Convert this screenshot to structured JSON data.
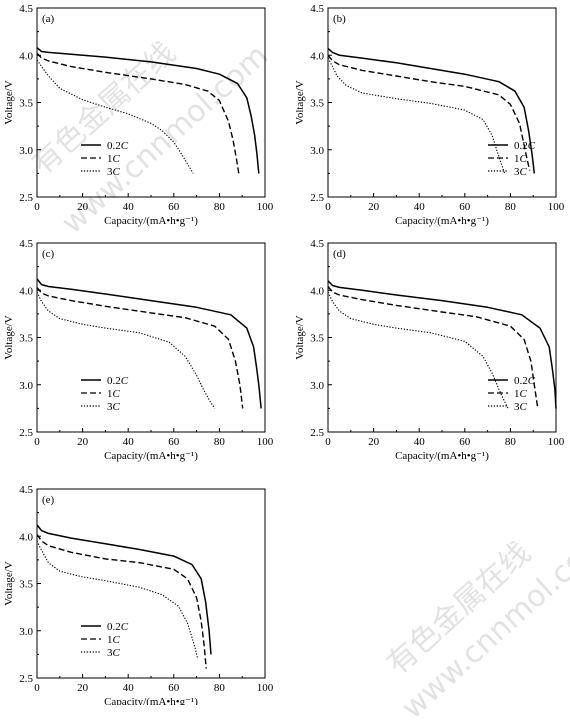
{
  "chart_data": [
    {
      "panel": "(a)",
      "type": "line",
      "xlabel": "Capacity/(mA•h•g⁻¹)",
      "ylabel": "Voltage/V",
      "xlim": [
        0,
        100
      ],
      "ylim": [
        2.5,
        4.5
      ],
      "xticks": [
        "0",
        "20",
        "40",
        "60",
        "80",
        "100"
      ],
      "yticks": [
        "2.5",
        "3.0",
        "3.5",
        "4.0",
        "4.5"
      ],
      "legend_position": "bottom-left",
      "series": [
        {
          "name": "0.2C",
          "style": "solid",
          "x": [
            0,
            2,
            5,
            15,
            30,
            50,
            70,
            80,
            88,
            92,
            94,
            95.5,
            96.5,
            97.3
          ],
          "y": [
            4.08,
            4.04,
            4.03,
            4.01,
            3.98,
            3.93,
            3.86,
            3.8,
            3.7,
            3.55,
            3.35,
            3.15,
            2.95,
            2.75
          ]
        },
        {
          "name": "1C",
          "style": "dashed",
          "x": [
            0,
            2,
            5,
            15,
            30,
            50,
            65,
            75,
            80,
            84,
            86,
            87.5,
            88.5
          ],
          "y": [
            4.02,
            3.97,
            3.94,
            3.88,
            3.82,
            3.75,
            3.69,
            3.62,
            3.52,
            3.3,
            3.1,
            2.9,
            2.75
          ]
        },
        {
          "name": "3C",
          "style": "dotted",
          "x": [
            0,
            2,
            5,
            10,
            20,
            30,
            40,
            50,
            55,
            60,
            63,
            66,
            68.5
          ],
          "y": [
            3.95,
            3.88,
            3.78,
            3.65,
            3.53,
            3.45,
            3.38,
            3.28,
            3.2,
            3.08,
            2.97,
            2.85,
            2.75
          ]
        }
      ]
    },
    {
      "panel": "(b)",
      "type": "line",
      "xlabel": "Capacity/(mA•h•g⁻¹)",
      "ylabel": "Voltage/V",
      "xlim": [
        0,
        100
      ],
      "ylim": [
        2.5,
        4.5
      ],
      "xticks": [
        "0",
        "20",
        "40",
        "60",
        "80",
        "100"
      ],
      "yticks": [
        "2.5",
        "3.0",
        "3.5",
        "4.0",
        "4.5"
      ],
      "legend_position": "bottom-right",
      "series": [
        {
          "name": "0.2C",
          "style": "solid",
          "x": [
            0,
            2,
            5,
            15,
            30,
            45,
            60,
            75,
            82,
            86,
            88,
            89.5,
            90.5
          ],
          "y": [
            4.07,
            4.03,
            4.0,
            3.97,
            3.92,
            3.86,
            3.8,
            3.72,
            3.62,
            3.45,
            3.2,
            2.95,
            2.75
          ]
        },
        {
          "name": "1C",
          "style": "dashed",
          "x": [
            0,
            2,
            5,
            15,
            30,
            45,
            60,
            75,
            80,
            84,
            86,
            87.5,
            88.5
          ],
          "y": [
            4.0,
            3.94,
            3.9,
            3.84,
            3.78,
            3.72,
            3.67,
            3.58,
            3.48,
            3.28,
            3.05,
            2.88,
            2.78
          ]
        },
        {
          "name": "3C",
          "style": "dotted",
          "x": [
            0,
            2,
            4,
            8,
            15,
            30,
            45,
            60,
            68,
            72,
            74,
            76,
            77.5
          ],
          "y": [
            3.97,
            3.88,
            3.78,
            3.68,
            3.6,
            3.54,
            3.49,
            3.42,
            3.32,
            3.15,
            3.0,
            2.85,
            2.75
          ]
        }
      ]
    },
    {
      "panel": "(c)",
      "type": "line",
      "xlabel": "Capacity/(mA•h•g⁻¹)",
      "ylabel": "Voltage/V",
      "xlim": [
        0,
        100
      ],
      "ylim": [
        2.5,
        4.5
      ],
      "xticks": [
        "0",
        "20",
        "40",
        "60",
        "80",
        "100"
      ],
      "yticks": [
        "2.5",
        "3.0",
        "3.5",
        "4.0",
        "4.5"
      ],
      "legend_position": "bottom-left",
      "series": [
        {
          "name": "0.2C",
          "style": "solid",
          "x": [
            0,
            2,
            5,
            15,
            30,
            50,
            70,
            85,
            92,
            95,
            96.5,
            97.5,
            98.3
          ],
          "y": [
            4.12,
            4.06,
            4.04,
            4.01,
            3.96,
            3.89,
            3.82,
            3.74,
            3.6,
            3.4,
            3.15,
            2.95,
            2.75
          ]
        },
        {
          "name": "1C",
          "style": "dashed",
          "x": [
            0,
            2,
            5,
            15,
            30,
            50,
            65,
            78,
            84,
            87,
            89,
            90.2
          ],
          "y": [
            4.03,
            3.97,
            3.94,
            3.89,
            3.83,
            3.76,
            3.71,
            3.62,
            3.48,
            3.25,
            3.0,
            2.75
          ]
        },
        {
          "name": "3C",
          "style": "dotted",
          "x": [
            0,
            2,
            5,
            10,
            20,
            30,
            45,
            58,
            65,
            70,
            73,
            76,
            78
          ],
          "y": [
            3.98,
            3.88,
            3.78,
            3.7,
            3.64,
            3.6,
            3.55,
            3.45,
            3.3,
            3.1,
            2.95,
            2.82,
            2.75
          ]
        }
      ]
    },
    {
      "panel": "(d)",
      "type": "line",
      "xlabel": "Capacity/(mA•h•g⁻¹)",
      "ylabel": "Voltage/V",
      "xlim": [
        0,
        100
      ],
      "ylim": [
        2.5,
        4.5
      ],
      "xticks": [
        "0",
        "20",
        "40",
        "60",
        "80",
        "100"
      ],
      "yticks": [
        "2.5",
        "3.0",
        "3.5",
        "4.0",
        "4.5"
      ],
      "legend_position": "bottom-right",
      "series": [
        {
          "name": "0.2C",
          "style": "solid",
          "x": [
            0,
            2,
            5,
            15,
            30,
            50,
            70,
            85,
            93,
            97,
            98.5,
            99.5,
            100
          ],
          "y": [
            4.1,
            4.05,
            4.03,
            4.0,
            3.95,
            3.89,
            3.82,
            3.74,
            3.6,
            3.4,
            3.15,
            2.95,
            2.75
          ]
        },
        {
          "name": "1C",
          "style": "dashed",
          "x": [
            0,
            2,
            5,
            15,
            30,
            50,
            65,
            80,
            86,
            89,
            90.5,
            92
          ],
          "y": [
            4.04,
            3.98,
            3.95,
            3.9,
            3.84,
            3.77,
            3.72,
            3.62,
            3.48,
            3.25,
            3.0,
            2.75
          ]
        },
        {
          "name": "3C",
          "style": "dotted",
          "x": [
            0,
            2,
            5,
            10,
            20,
            30,
            45,
            60,
            68,
            72,
            75,
            77.5,
            79
          ],
          "y": [
            3.98,
            3.88,
            3.78,
            3.7,
            3.64,
            3.6,
            3.55,
            3.46,
            3.3,
            3.12,
            2.95,
            2.82,
            2.75
          ]
        }
      ]
    },
    {
      "panel": "(e)",
      "type": "line",
      "xlabel": "Capacity/(mA•h•g⁻¹)",
      "ylabel": "Voltage/V",
      "xlim": [
        0,
        100
      ],
      "ylim": [
        2.5,
        4.5
      ],
      "xticks": [
        "0",
        "20",
        "40",
        "60",
        "80",
        "100"
      ],
      "yticks": [
        "2.5",
        "3.0",
        "3.5",
        "4.0",
        "4.5"
      ],
      "legend_position": "bottom-left",
      "series": [
        {
          "name": "0.2C",
          "style": "solid",
          "x": [
            0,
            2,
            5,
            15,
            30,
            45,
            60,
            68,
            72,
            74,
            75.5,
            76.3
          ],
          "y": [
            4.12,
            4.06,
            4.03,
            3.98,
            3.92,
            3.86,
            3.79,
            3.7,
            3.55,
            3.3,
            3.0,
            2.75
          ]
        },
        {
          "name": "1C",
          "style": "dashed",
          "x": [
            0,
            2,
            5,
            15,
            30,
            45,
            60,
            66,
            70,
            72,
            73.3,
            74.2
          ],
          "y": [
            4.02,
            3.95,
            3.9,
            3.83,
            3.76,
            3.72,
            3.65,
            3.55,
            3.35,
            3.1,
            2.85,
            2.6
          ]
        },
        {
          "name": "3C",
          "style": "dotted",
          "x": [
            0,
            2,
            5,
            10,
            20,
            30,
            45,
            55,
            62,
            66,
            68,
            69.5,
            70.5
          ],
          "y": [
            3.95,
            3.85,
            3.72,
            3.63,
            3.57,
            3.53,
            3.46,
            3.38,
            3.26,
            3.08,
            2.93,
            2.8,
            2.7
          ]
        }
      ]
    }
  ],
  "watermarks": [
    "有色金属在线",
    "www.cnnmol.com"
  ]
}
